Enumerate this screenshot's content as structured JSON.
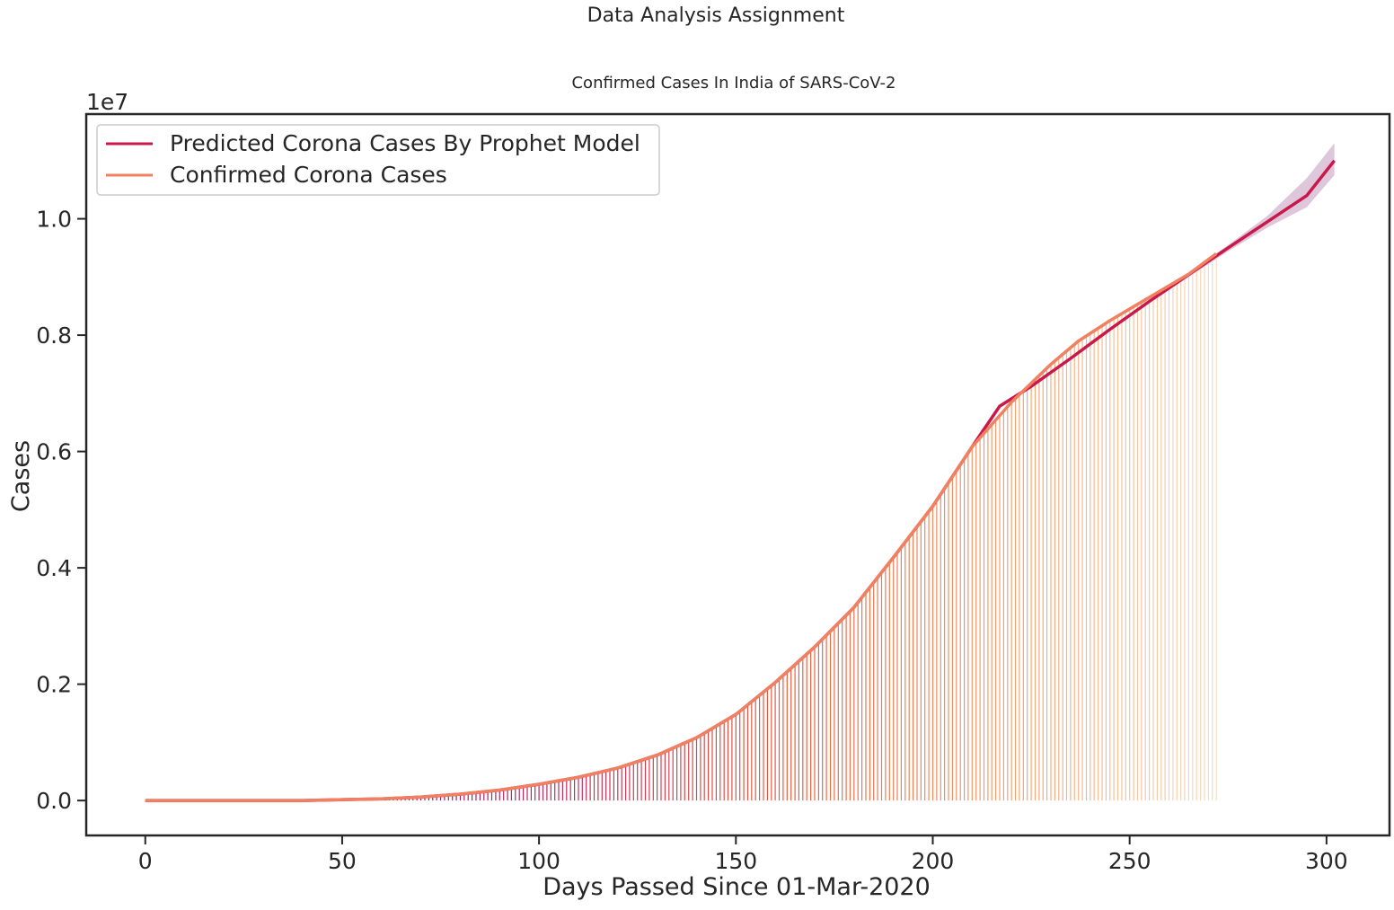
{
  "figure": {
    "suptitle": "Data Analysis Assignment"
  },
  "chart_data": {
    "type": "line",
    "title": "Confirmed Cases In India of  SARS-CoV-2",
    "xlabel": "Days Passed Since 01-Mar-2020",
    "ylabel": "Cases",
    "y_offset_label": "1e7",
    "xlim": [
      -15,
      316
    ],
    "ylim": [
      -0.06,
      1.18
    ],
    "y_scale_multiplier": 10000000,
    "x_ticks": [
      0,
      50,
      100,
      150,
      200,
      250,
      300
    ],
    "x_tick_labels": [
      "0",
      "50",
      "100",
      "150",
      "200",
      "250",
      "300"
    ],
    "y_ticks": [
      0.0,
      0.2,
      0.4,
      0.6,
      0.8,
      1.0
    ],
    "y_tick_labels": [
      "0.0",
      "0.2",
      "0.4",
      "0.6",
      "0.8",
      "1.0"
    ],
    "grid": false,
    "legend_position": "top-left",
    "series": [
      {
        "name": "Predicted Corona Cases By Prophet Model",
        "color": "#c9184a",
        "x": [
          0,
          20,
          40,
          60,
          70,
          80,
          90,
          100,
          110,
          120,
          130,
          140,
          150,
          160,
          170,
          180,
          190,
          200,
          210,
          217,
          225,
          235,
          245,
          255,
          265,
          275,
          285,
          295,
          302
        ],
        "values": [
          0.0,
          0.0,
          0.0,
          0.003,
          0.006,
          0.011,
          0.018,
          0.028,
          0.04,
          0.056,
          0.078,
          0.108,
          0.148,
          0.203,
          0.264,
          0.332,
          0.418,
          0.506,
          0.608,
          0.678,
          0.712,
          0.76,
          0.81,
          0.858,
          0.904,
          0.95,
          0.995,
          1.04,
          1.1
        ],
        "band_upper": [
          0.0,
          0.0,
          0.0,
          0.003,
          0.006,
          0.011,
          0.018,
          0.028,
          0.04,
          0.056,
          0.078,
          0.108,
          0.148,
          0.203,
          0.264,
          0.332,
          0.418,
          0.506,
          0.608,
          0.678,
          0.714,
          0.762,
          0.812,
          0.86,
          0.907,
          0.955,
          1.005,
          1.07,
          1.13
        ],
        "band_lower": [
          -0.003,
          -0.003,
          -0.003,
          0.0,
          0.003,
          0.008,
          0.015,
          0.025,
          0.037,
          0.053,
          0.075,
          0.105,
          0.145,
          0.2,
          0.261,
          0.329,
          0.415,
          0.503,
          0.605,
          0.675,
          0.709,
          0.757,
          0.807,
          0.855,
          0.9,
          0.944,
          0.985,
          1.02,
          1.075
        ]
      },
      {
        "name": "Confirmed Corona Cases",
        "color": "#f08060",
        "x": [
          0,
          20,
          40,
          60,
          70,
          80,
          90,
          100,
          110,
          120,
          130,
          140,
          150,
          160,
          170,
          180,
          190,
          200,
          210,
          220,
          230,
          237,
          245,
          255,
          265,
          272
        ],
        "values": [
          0.0,
          0.0,
          0.0,
          0.003,
          0.006,
          0.011,
          0.018,
          0.028,
          0.04,
          0.056,
          0.078,
          0.108,
          0.148,
          0.203,
          0.264,
          0.332,
          0.418,
          0.506,
          0.608,
          0.685,
          0.75,
          0.79,
          0.825,
          0.865,
          0.905,
          0.94
        ]
      }
    ],
    "stem_color_stops": [
      "#3a0f4f",
      "#7a1a6e",
      "#c02e5a",
      "#e5603f",
      "#f2a070",
      "#f8dcc0"
    ]
  }
}
